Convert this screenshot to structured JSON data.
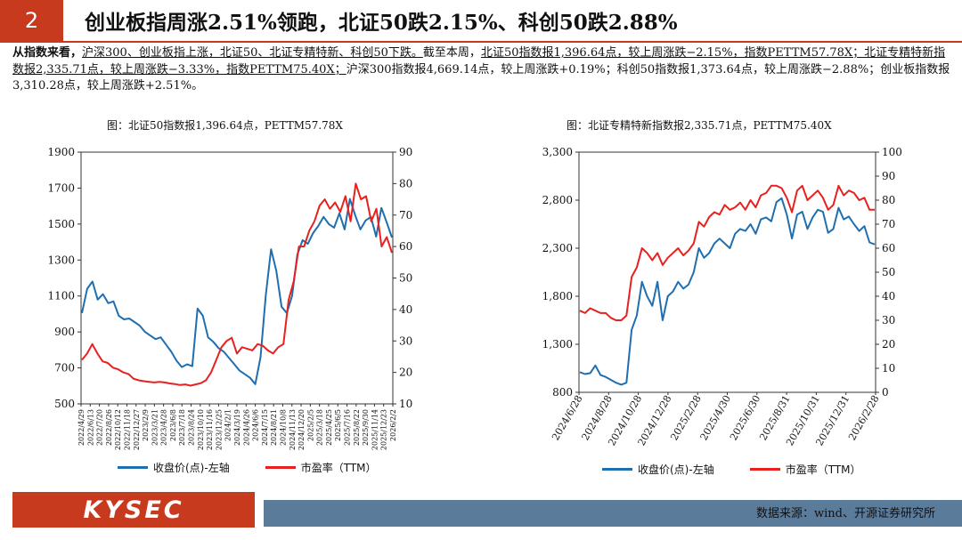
{
  "header": {
    "number": "2",
    "title": "创业板指周涨2.51%领跑，北证50跌2.15%、科创50跌2.88%"
  },
  "summary": {
    "lead": "从指数来看，",
    "p1": "沪深300、创业板指上涨，北证50、北证专精特新、科创50下跌。",
    "p2": "截至本周，",
    "p3": "北证50指数报1,396.64点，较上周涨跌−2.15%，指数PETTM57.78X；北证专精特新指数报2,335.71点，较上周涨跌−3.33%，指数PETTM75.40X；",
    "p4": "沪深300指数报4,669.14点，较上周涨跌+0.19%；科创50指数报1,373.64点，较上周涨跌−2.88%；创业板指数报3,310.28点，较上周涨跌+2.51%。"
  },
  "colors": {
    "brand_red": "#c83a1e",
    "series_blue": "#1f6fb0",
    "series_red": "#e8201e",
    "footer_blue": "#5b7b9a"
  },
  "chart_data": [
    {
      "type": "line",
      "title": "图：北证50指数报1,396.64点，PETTM57.78X",
      "y_left_ticks": [
        "1900",
        "1700",
        "1500",
        "1300",
        "1100",
        "900",
        "700",
        "500"
      ],
      "y_right_ticks": [
        "90",
        "80",
        "70",
        "60",
        "50",
        "40",
        "30",
        "20",
        "10"
      ],
      "ylim_left": [
        500,
        1900
      ],
      "ylim_right": [
        10,
        90
      ],
      "x_labels": [
        "2022/4/29",
        "2022/6/13",
        "2022/7/20",
        "2022/8/26",
        "2022/10/12",
        "2022/11/18",
        "2022/12/27",
        "2023/2/9",
        "2023/3/21",
        "2023/4/28",
        "2023/6/8",
        "2023/7/18",
        "2023/8/24",
        "2023/10/10",
        "2023/11/16",
        "2023/12/25",
        "2024/2/1",
        "2024/3/19",
        "2024/4/26",
        "2024/6/6",
        "2024/7/15",
        "2024/8/21",
        "2024/10/8",
        "2024/11/13",
        "2024/12/20",
        "2025/2/5",
        "2025/3/18",
        "2025/4/25",
        "2025/6/5",
        "2025/7/16",
        "2025/8/22",
        "2025/9/30",
        "2025/11/14",
        "2025/12/23",
        "2026/2/2"
      ],
      "series": [
        {
          "name": "收盘价(点)-左轴",
          "axis": "left",
          "color": "#1f6fb0",
          "values": [
            1005,
            1140,
            1180,
            1080,
            1110,
            1060,
            1070,
            990,
            970,
            975,
            955,
            935,
            900,
            880,
            860,
            870,
            830,
            790,
            740,
            705,
            720,
            710,
            1030,
            990,
            870,
            845,
            810,
            790,
            755,
            720,
            685,
            665,
            645,
            610,
            760,
            1105,
            1360,
            1240,
            1040,
            1005,
            1100,
            1330,
            1410,
            1390,
            1450,
            1490,
            1540,
            1500,
            1480,
            1560,
            1470,
            1640,
            1550,
            1470,
            1520,
            1540,
            1430,
            1590,
            1510,
            1425
          ]
        },
        {
          "name": "市盈率（TTM）",
          "axis": "right",
          "color": "#e8201e",
          "values": [
            24,
            26,
            29,
            26,
            23.5,
            23,
            21.5,
            21,
            20,
            19.5,
            18,
            17.5,
            17.2,
            17,
            16.8,
            17,
            16.8,
            16.5,
            16.3,
            16,
            16.2,
            15.8,
            16.2,
            16.6,
            17.5,
            20,
            24,
            28,
            30,
            31,
            26,
            28,
            27.5,
            27,
            29,
            28.5,
            27,
            26,
            28,
            29,
            43,
            49,
            60,
            60,
            65,
            68,
            73,
            75,
            72,
            74,
            71,
            76,
            68,
            80,
            75,
            76,
            68,
            72,
            60,
            63,
            58
          ]
        }
      ]
    },
    {
      "type": "line",
      "title": "图：北证专精特新指数报2,335.71点，PETTM75.40X",
      "y_left_ticks": [
        "3,300",
        "2,800",
        "2,300",
        "1,800",
        "1,300",
        "800"
      ],
      "y_right_ticks": [
        "100",
        "90",
        "80",
        "70",
        "60",
        "50",
        "40",
        "30",
        "20",
        "10",
        "0"
      ],
      "ylim_left": [
        800,
        3300
      ],
      "ylim_right": [
        0,
        100
      ],
      "x_labels": [
        "2024/6/28",
        "2024/8/28",
        "2024/10/28",
        "2024/12/28",
        "2025/2/28",
        "2025/4/30",
        "2025/6/30",
        "2025/8/31",
        "2025/10/31",
        "2025/12/31",
        "2026/2/28"
      ],
      "series": [
        {
          "name": "收盘价(点)-左轴",
          "axis": "left",
          "color": "#1f6fb0",
          "values": [
            1010,
            990,
            1000,
            1080,
            980,
            960,
            930,
            900,
            880,
            900,
            1450,
            1600,
            1950,
            1800,
            1700,
            1950,
            1550,
            1800,
            1850,
            1950,
            1880,
            1920,
            2050,
            2300,
            2200,
            2250,
            2350,
            2400,
            2350,
            2300,
            2450,
            2500,
            2480,
            2550,
            2450,
            2600,
            2620,
            2580,
            2780,
            2820,
            2650,
            2400,
            2650,
            2680,
            2500,
            2620,
            2700,
            2680,
            2460,
            2500,
            2720,
            2600,
            2630,
            2550,
            2480,
            2530,
            2360,
            2340
          ]
        },
        {
          "name": "市盈率（TTM）",
          "axis": "right",
          "color": "#e8201e",
          "values": [
            34,
            33,
            35,
            34,
            33,
            33,
            31,
            30,
            30,
            32,
            48,
            52,
            60,
            58,
            55,
            58,
            53,
            56,
            58,
            60,
            57,
            59,
            62,
            71,
            69,
            73,
            75,
            74,
            78,
            76,
            77,
            79,
            76,
            80,
            77,
            82,
            83,
            86,
            86,
            85,
            81,
            75,
            84,
            86,
            80,
            82,
            84,
            81,
            76,
            78,
            86,
            82,
            84,
            83,
            80,
            81,
            76,
            76
          ]
        }
      ]
    }
  ],
  "legend": {
    "close_label": "收盘价(点)-左轴",
    "pe_label": "市盈率（TTM）"
  },
  "footer": {
    "logo": "KYSEC",
    "source": "数据来源：wind、开源证券研究所"
  }
}
